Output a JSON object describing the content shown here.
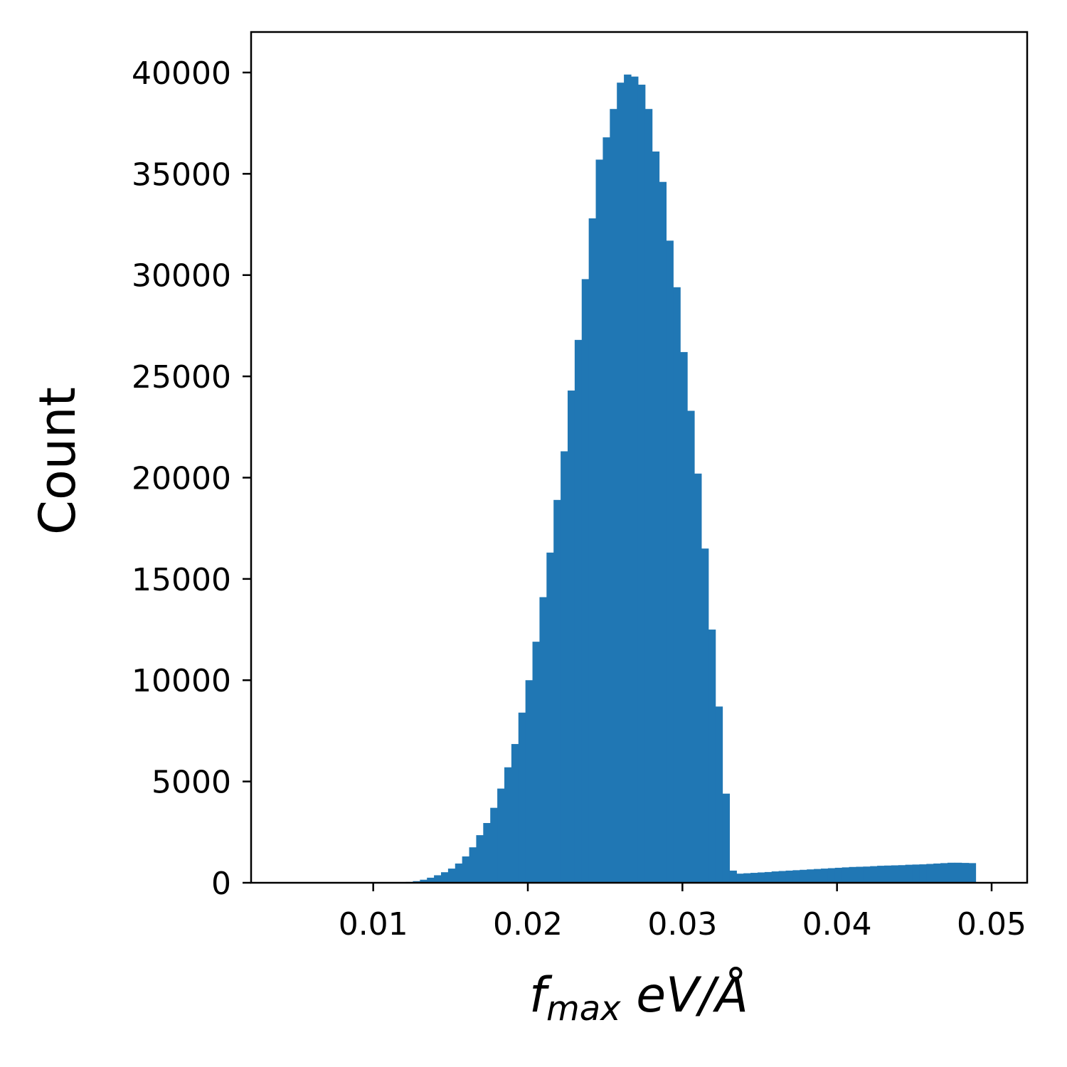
{
  "chart_data": {
    "type": "bar",
    "title": "",
    "xlabel": {
      "main": "f",
      "subscript": "max",
      "unit": "eV/Å"
    },
    "ylabel": "Count",
    "xlim": [
      0.0021,
      0.0523
    ],
    "ylim": [
      0,
      42000
    ],
    "xticks": [
      0.01,
      0.02,
      0.03,
      0.04,
      0.05
    ],
    "xtick_labels": [
      "0.01",
      "0.02",
      "0.03",
      "0.04",
      "0.05"
    ],
    "yticks": [
      0,
      5000,
      10000,
      15000,
      20000,
      25000,
      30000,
      35000,
      40000
    ],
    "ytick_labels": [
      "0",
      "5000",
      "10000",
      "15000",
      "20000",
      "25000",
      "30000",
      "35000",
      "40000"
    ],
    "grid": false,
    "legend": "none",
    "bar_color": "#2077b4",
    "bin_start": 0.0021,
    "bin_width": 0.000455,
    "counts": [
      0,
      0,
      0,
      0,
      0,
      0,
      0,
      0,
      0,
      0,
      0,
      0,
      0,
      0,
      0,
      0,
      0,
      0,
      0,
      0,
      5,
      15,
      40,
      80,
      150,
      250,
      370,
      520,
      700,
      950,
      1300,
      1750,
      2350,
      2950,
      3700,
      4650,
      5700,
      6850,
      8400,
      10000,
      11900,
      14100,
      16300,
      18900,
      21300,
      24300,
      26800,
      29800,
      32800,
      35700,
      36800,
      38200,
      39500,
      39900,
      39800,
      39400,
      38200,
      36100,
      34600,
      31700,
      29400,
      26200,
      23300,
      20200,
      16500,
      12500,
      8700,
      4400,
      600,
      450,
      470,
      490,
      510,
      530,
      560,
      580,
      600,
      620,
      640,
      660,
      680,
      700,
      720,
      740,
      760,
      780,
      790,
      800,
      820,
      840,
      850,
      860,
      870,
      890,
      900,
      910,
      930,
      950,
      970,
      990,
      990,
      980,
      970
    ]
  }
}
